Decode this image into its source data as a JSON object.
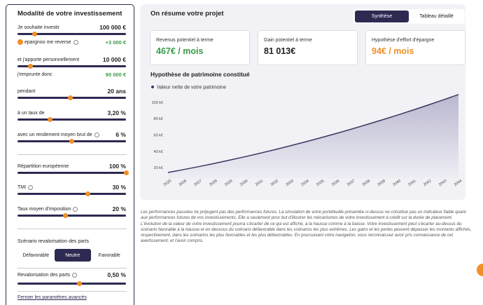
{
  "sidebar": {
    "title": "Modalité de votre investissement",
    "fields": [
      {
        "label": "Je souhaite investir",
        "value": "100 000 €"
      },
      {
        "label": "epargnoo me reverse",
        "value": "+3 000 €"
      },
      {
        "label": "et j'apporte personnellement",
        "value": "10 000 €"
      },
      {
        "label": "j'emprunte donc",
        "value": "90 000 €"
      },
      {
        "label": "pendant",
        "value": "20 ans"
      },
      {
        "label": "à un taux de",
        "value": "3,20 %"
      },
      {
        "label": "avec un rendement moyen brut de",
        "value": "6 %"
      },
      {
        "label": "Répartition européenne",
        "value": "100 %"
      },
      {
        "label": "TMI",
        "value": "30 %"
      },
      {
        "label": "Taux moyen d'imposition",
        "value": "20 %"
      }
    ],
    "scenario": {
      "title": "Scénario revalorisation des parts",
      "options": [
        "Défavorable",
        "Neutre",
        "Favorable"
      ]
    },
    "revalorisation": {
      "label": "Revalorisation des parts",
      "value": "0,50 %"
    },
    "link": "Fermer les paramètres avancés"
  },
  "summary": {
    "title": "On résume votre projet",
    "tabs": [
      "Synthèse",
      "Tableau détaillé"
    ],
    "cards": [
      {
        "label": "Revenus potentiel à terme",
        "value": "467€ / mois"
      },
      {
        "label": "Gain potentiel à terme",
        "value": "81 013€"
      },
      {
        "label": "Hypothèse d'effort d'épargne",
        "value": "94€ / mois"
      }
    ],
    "chart": {
      "type": "area",
      "title": "Hypothèse de patrimoine constitué",
      "categories": [
        "2025",
        "2026",
        "2027",
        "2028",
        "2029",
        "2030",
        "2031",
        "2032",
        "2033",
        "2034",
        "2035",
        "2036",
        "2037",
        "2038",
        "2039",
        "2040",
        "2041",
        "2042",
        "2043",
        "2044"
      ],
      "series": [
        {
          "name": "Valeur nette de votre patrimoine",
          "color": "#3a3760",
          "values": [
            14000,
            17500,
            21170,
            25010,
            29020,
            33200,
            37550,
            42070,
            46760,
            51620,
            56650,
            61850,
            67220,
            72760,
            78470,
            84350,
            90400,
            96620,
            103010,
            109570
          ]
        }
      ],
      "ylim": [
        8000,
        112000
      ],
      "yticks": [
        {
          "value": 20000,
          "label": "20 k€"
        },
        {
          "value": 40000,
          "label": "40 k€"
        },
        {
          "value": 60000,
          "label": "60 k€"
        },
        {
          "value": 80000,
          "label": "80 k€"
        },
        {
          "value": 100000,
          "label": "100 k€"
        }
      ]
    }
  },
  "disclaimer": "Les performances passées ne préjugent pas des performances futures. La simulation de votre portefeuille présentée ci-dessus ne constitue pas un indicateur fiable quant aux performances futures de vos investissements. Elle a seulement pour but d'illustrer les mécanismes de votre investissement à crédit sur la durée de placement. L'évolution de la valeur de votre investissement pourra s'écarter de ce qui est affiché, à la hausse comme à la baisse. Votre investissement peut s'écarter au-dessus du scénario favorable à la hausse et en dessous du scénario défavorable dans les scénarios les plus extrêmes. Les gains et les pertes peuvent dépasser les montants affichés, respectivement, dans les scénarios les plus favorables et les plus défavorables. En poursuivant votre navigation, vous reconnaissez avoir pris connaissance de cet avertissement, et l'avoir compris."
}
